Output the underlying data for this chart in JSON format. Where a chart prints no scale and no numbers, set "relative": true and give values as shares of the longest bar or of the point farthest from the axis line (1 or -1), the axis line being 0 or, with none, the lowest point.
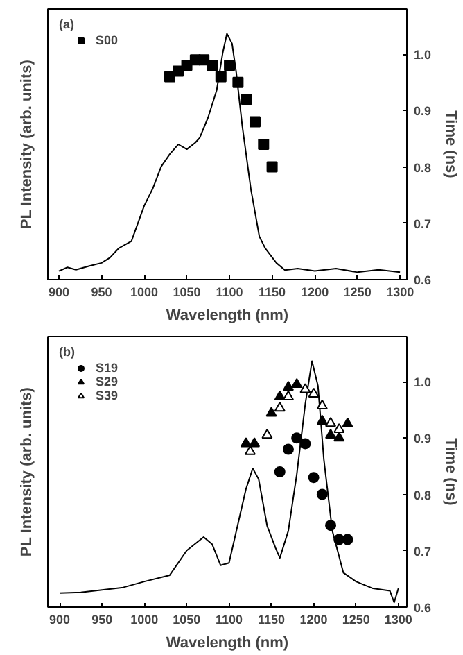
{
  "chart_data": [
    {
      "type": "line",
      "annotations": [
        "(a)"
      ],
      "xlabel": "Wavelength (nm)",
      "ylabel": "PL Intensity (arb. units)",
      "y2label": "Time (ns)",
      "relative": true,
      "xlim": [
        887,
        1308
      ],
      "xticks": [
        900,
        950,
        1000,
        1050,
        1100,
        1150,
        1200,
        1250,
        1300
      ],
      "y2lim": [
        0.6,
        1.08
      ],
      "y2ticks": [
        0.6,
        0.7,
        0.8,
        0.9,
        {
          "value": 1.0,
          "label": "1.0"
        }
      ],
      "grid": false,
      "legend": "top left",
      "series": [
        {
          "color": "#000000",
          "x": [
            900,
            910,
            920,
            935,
            950,
            960,
            970,
            985,
            1000,
            1010,
            1020,
            1030,
            1040,
            1050,
            1060,
            1065,
            1075,
            1085,
            1092,
            1097,
            1103,
            1108,
            1115,
            1125,
            1135,
            1142,
            1155,
            1165,
            1180,
            1200,
            1225,
            1250,
            1275,
            1300
          ],
          "values": [
            0.035,
            0.05,
            0.04,
            0.055,
            0.068,
            0.09,
            0.127,
            0.156,
            0.3,
            0.37,
            0.46,
            0.51,
            0.55,
            0.53,
            0.557,
            0.576,
            0.66,
            0.77,
            0.92,
            1.0,
            0.96,
            0.84,
            0.625,
            0.37,
            0.176,
            0.127,
            0.068,
            0.039,
            0.045,
            0.035,
            0.045,
            0.03,
            0.04,
            0.03
          ]
        },
        {
          "type": "scatter",
          "name": "S00",
          "axis": "y2",
          "marker": "square",
          "color": "#000000",
          "x": [
            1030,
            1040,
            1050,
            1060,
            1070,
            1080,
            1090,
            1100,
            1110,
            1120,
            1130,
            1140,
            1150
          ],
          "values": [
            0.96,
            0.97,
            0.98,
            0.99,
            0.99,
            0.98,
            0.96,
            0.98,
            0.95,
            0.92,
            0.88,
            0.84,
            0.8
          ]
        }
      ]
    },
    {
      "type": "line",
      "annotations": [
        "(b)"
      ],
      "xlabel": "Wavelength (nm)",
      "ylabel": "PL Intensity (arb. units)",
      "y2label": "Time (ns)",
      "relative": true,
      "xlim": [
        886,
        1310
      ],
      "xticks": [
        900,
        950,
        1000,
        1050,
        1100,
        1150,
        1200,
        1250,
        1300
      ],
      "y2lim": [
        0.6,
        1.08
      ],
      "y2ticks": [
        0.6,
        0.7,
        0.8,
        0.9,
        {
          "value": 1.0,
          "label": "1.0"
        }
      ],
      "grid": false,
      "legend": "top left",
      "series": [
        {
          "color": "#000000",
          "x": [
            900,
            925,
            950,
            975,
            1000,
            1030,
            1050,
            1070,
            1080,
            1090,
            1100,
            1110,
            1120,
            1128,
            1135,
            1145,
            1155,
            1160,
            1170,
            1180,
            1190,
            1198,
            1205,
            1212,
            1222,
            1235,
            1250,
            1270,
            1290,
            1295,
            1300
          ],
          "values": [
            0.057,
            0.06,
            0.07,
            0.08,
            0.104,
            0.13,
            0.23,
            0.285,
            0.256,
            0.17,
            0.18,
            0.33,
            0.48,
            0.564,
            0.52,
            0.33,
            0.24,
            0.2,
            0.31,
            0.54,
            0.825,
            1.0,
            0.9,
            0.6,
            0.31,
            0.14,
            0.104,
            0.076,
            0.066,
            0.019,
            0.076
          ]
        },
        {
          "type": "scatter",
          "name": "S19",
          "axis": "y2",
          "marker": "circle",
          "color": "#000000",
          "x": [
            1160,
            1170,
            1180,
            1190,
            1200,
            1210,
            1220,
            1230,
            1240
          ],
          "values": [
            0.84,
            0.88,
            0.9,
            0.89,
            0.83,
            0.8,
            0.745,
            0.72,
            0.72
          ]
        },
        {
          "type": "scatter",
          "name": "S29",
          "axis": "y2",
          "marker": "triangle",
          "color": "#000000",
          "x": [
            1120,
            1130,
            1150,
            1160,
            1170,
            1180,
            1210,
            1220,
            1230,
            1240
          ],
          "values": [
            0.89,
            0.89,
            0.944,
            0.973,
            0.99,
            0.995,
            0.93,
            0.905,
            0.9,
            0.925
          ]
        },
        {
          "type": "scatter",
          "name": "S39",
          "axis": "y2",
          "marker": "triangle",
          "color": "#ffffff",
          "x": [
            1125,
            1145,
            1160,
            1170,
            1190,
            1200,
            1210,
            1220,
            1230
          ],
          "values": [
            0.876,
            0.905,
            0.953,
            0.973,
            0.986,
            0.978,
            0.957,
            0.926,
            0.915
          ]
        }
      ]
    }
  ]
}
